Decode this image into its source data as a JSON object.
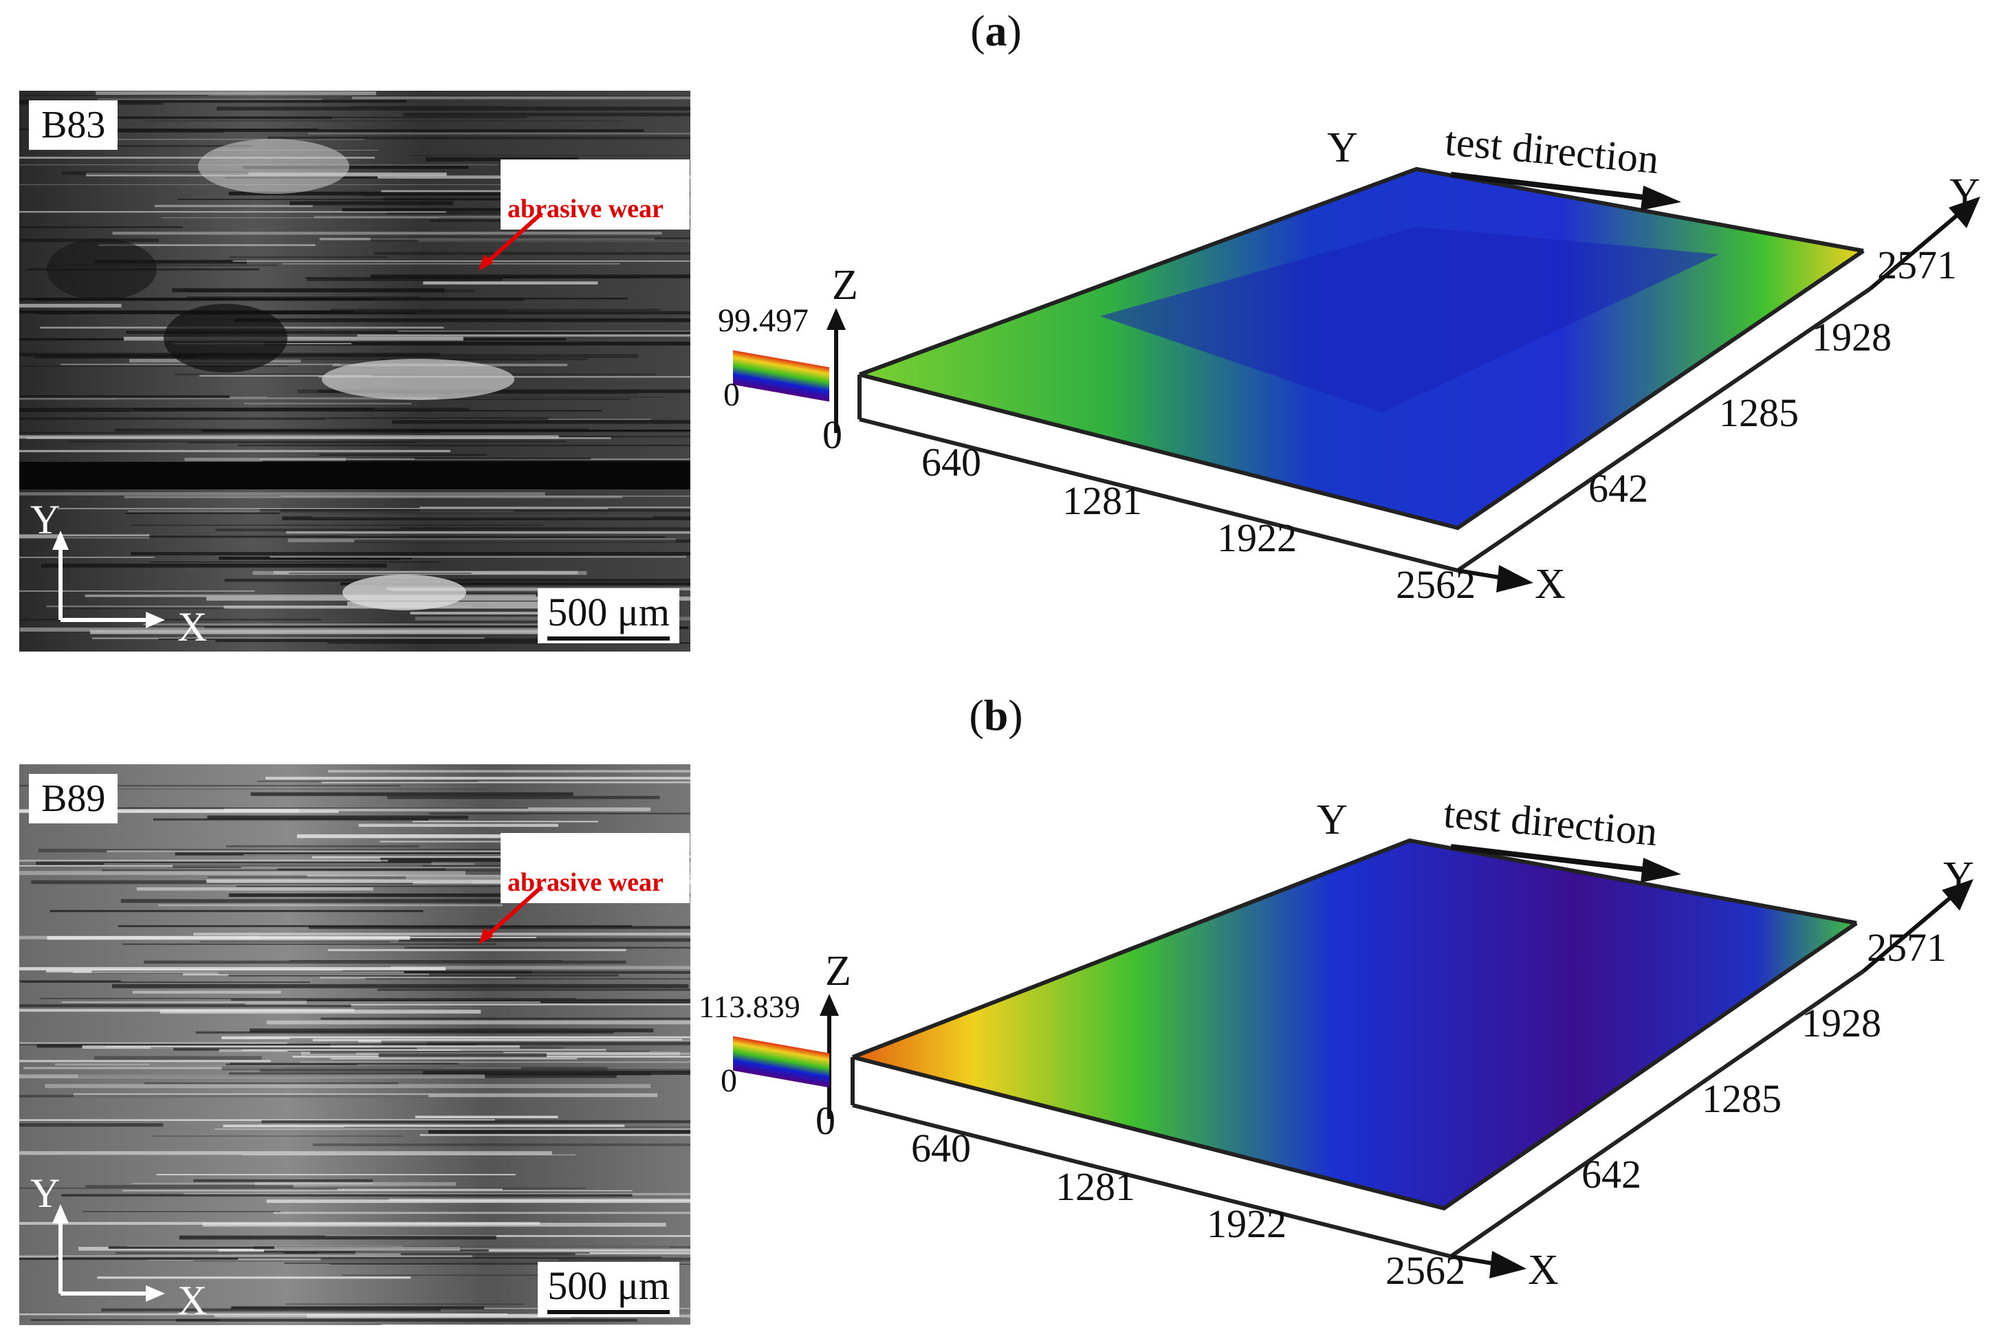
{
  "figure": {
    "panels": [
      {
        "label": "(a)",
        "label_letter": "a",
        "micrograph": {
          "sample": "B83",
          "annotation": "abrasive wear",
          "axis_y": "Y",
          "axis_x": "X",
          "scale_bar": "500 μm"
        },
        "profile": {
          "z_label": "Z",
          "y_label_top": "Y",
          "y_label_right": "Y",
          "x_label": "X",
          "direction_label": "test direction",
          "z_max": "99.497",
          "z_min": "0",
          "origin": "0",
          "x_ticks": [
            "640",
            "1281",
            "1922",
            "2562"
          ],
          "y_ticks": [
            "642",
            "1285",
            "1928",
            "2571"
          ]
        }
      },
      {
        "label": "(b)",
        "label_letter": "b",
        "micrograph": {
          "sample": "B89",
          "annotation": "abrasive wear",
          "axis_y": "Y",
          "axis_x": "X",
          "scale_bar": "500 μm"
        },
        "profile": {
          "z_label": "Z",
          "y_label_top": "Y",
          "y_label_right": "Y",
          "x_label": "X",
          "direction_label": "test direction",
          "z_max": "113.839",
          "z_min": "0",
          "origin": "0",
          "x_ticks": [
            "640",
            "1281",
            "1922",
            "2562"
          ],
          "y_ticks": [
            "642",
            "1285",
            "1928",
            "2571"
          ]
        }
      }
    ],
    "colors": {
      "annotation_red": "#e00000",
      "surface_high": "#e03010",
      "surface_mid_high": "#f0d020",
      "surface_mid": "#40c020",
      "surface_low": "#1020d0",
      "surface_lowest": "#500080"
    }
  }
}
